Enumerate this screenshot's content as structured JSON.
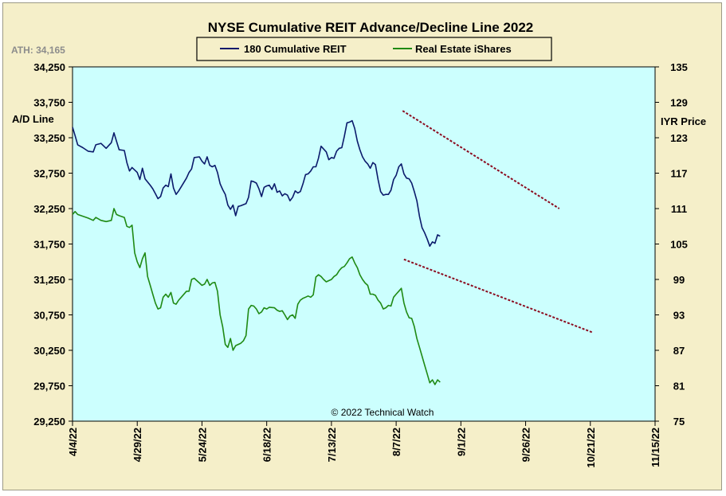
{
  "chart_data": {
    "type": "line",
    "title": "NYSE Cumulative  REIT Advance/Decline  Line 2022",
    "ath_label": "ATH: 34,165",
    "left_axis_label": "A/D Line",
    "right_axis_label": "IYR Price",
    "copyright": "© 2022 Technical  Watch",
    "left_axis": {
      "ylim": [
        29250,
        34250
      ],
      "ticks": [
        "34,250",
        "33,750",
        "33,250",
        "32,750",
        "32,250",
        "31,750",
        "31,250",
        "30,750",
        "30,250",
        "29,750",
        "29,250"
      ]
    },
    "right_axis": {
      "ylim": [
        75,
        135
      ],
      "ticks": [
        "135",
        "129",
        "123",
        "117",
        "111",
        "105",
        "99",
        "93",
        "87",
        "81",
        "75"
      ]
    },
    "x_axis": {
      "ticks": [
        "4/4/22",
        "4/29/22",
        "5/24/22",
        "6/18/22",
        "7/13/22",
        "8/7/22",
        "9/1/22",
        "9/26/22",
        "10/21/22",
        "11/15/22"
      ],
      "tick_days": [
        0,
        25,
        50,
        75,
        100,
        125,
        150,
        175,
        200,
        225
      ],
      "range_days": [
        0,
        225
      ]
    },
    "grid": false,
    "legend_position": "top-center",
    "colors": {
      "background": "#ccfffe",
      "reit": "#0b1a6b",
      "iyr": "#1f8a14",
      "trendline": "#8b0a1e"
    },
    "series": [
      {
        "name": "180 Cumulative REIT",
        "axis": "left",
        "color": "#0b1a6b",
        "points": [
          [
            0,
            33400
          ],
          [
            1,
            33280
          ],
          [
            2,
            33150
          ],
          [
            4,
            33110
          ],
          [
            6,
            33060
          ],
          [
            8,
            33050
          ],
          [
            9,
            33150
          ],
          [
            11,
            33170
          ],
          [
            13,
            33100
          ],
          [
            15,
            33180
          ],
          [
            16,
            33320
          ],
          [
            17,
            33200
          ],
          [
            18,
            33080
          ],
          [
            20,
            33070
          ],
          [
            21,
            32900
          ],
          [
            22,
            32780
          ],
          [
            23,
            32830
          ],
          [
            25,
            32760
          ],
          [
            26,
            32660
          ],
          [
            27,
            32820
          ],
          [
            28,
            32670
          ],
          [
            30,
            32580
          ],
          [
            31,
            32530
          ],
          [
            32,
            32460
          ],
          [
            33,
            32390
          ],
          [
            34,
            32420
          ],
          [
            35,
            32540
          ],
          [
            36,
            32580
          ],
          [
            37,
            32560
          ],
          [
            38,
            32740
          ],
          [
            39,
            32540
          ],
          [
            40,
            32450
          ],
          [
            41,
            32500
          ],
          [
            42,
            32560
          ],
          [
            44,
            32680
          ],
          [
            45,
            32760
          ],
          [
            46,
            32810
          ],
          [
            47,
            32970
          ],
          [
            49,
            32980
          ],
          [
            50,
            32920
          ],
          [
            51,
            32880
          ],
          [
            52,
            32980
          ],
          [
            53,
            32860
          ],
          [
            54,
            32840
          ],
          [
            55,
            32860
          ],
          [
            56,
            32760
          ],
          [
            57,
            32600
          ],
          [
            58,
            32520
          ],
          [
            59,
            32450
          ],
          [
            60,
            32300
          ],
          [
            61,
            32240
          ],
          [
            62,
            32300
          ],
          [
            63,
            32150
          ],
          [
            64,
            32280
          ],
          [
            65,
            32290
          ],
          [
            67,
            32320
          ],
          [
            68,
            32410
          ],
          [
            69,
            32640
          ],
          [
            70,
            32630
          ],
          [
            71,
            32610
          ],
          [
            72,
            32530
          ],
          [
            73,
            32420
          ],
          [
            74,
            32550
          ],
          [
            75,
            32570
          ],
          [
            76,
            32580
          ],
          [
            77,
            32520
          ],
          [
            78,
            32600
          ],
          [
            79,
            32480
          ],
          [
            80,
            32500
          ],
          [
            81,
            32430
          ],
          [
            82,
            32460
          ],
          [
            83,
            32440
          ],
          [
            84,
            32360
          ],
          [
            85,
            32410
          ],
          [
            86,
            32500
          ],
          [
            87,
            32470
          ],
          [
            88,
            32490
          ],
          [
            89,
            32600
          ],
          [
            90,
            32730
          ],
          [
            91,
            32740
          ],
          [
            92,
            32780
          ],
          [
            93,
            32840
          ],
          [
            94,
            32840
          ],
          [
            95,
            32960
          ],
          [
            96,
            33130
          ],
          [
            97,
            33090
          ],
          [
            98,
            33050
          ],
          [
            99,
            32940
          ],
          [
            100,
            32970
          ],
          [
            101,
            32960
          ],
          [
            102,
            33060
          ],
          [
            103,
            33100
          ],
          [
            104,
            33110
          ],
          [
            105,
            33270
          ],
          [
            106,
            33460
          ],
          [
            107,
            33470
          ],
          [
            108,
            33490
          ],
          [
            109,
            33380
          ],
          [
            110,
            33200
          ],
          [
            111,
            33080
          ],
          [
            112,
            32980
          ],
          [
            113,
            32920
          ],
          [
            114,
            32880
          ],
          [
            115,
            32820
          ],
          [
            116,
            32900
          ],
          [
            117,
            32870
          ],
          [
            118,
            32660
          ],
          [
            119,
            32490
          ],
          [
            120,
            32440
          ],
          [
            121,
            32450
          ],
          [
            122,
            32450
          ],
          [
            123,
            32510
          ],
          [
            124,
            32660
          ],
          [
            125,
            32720
          ],
          [
            126,
            32840
          ],
          [
            127,
            32880
          ],
          [
            128,
            32740
          ],
          [
            129,
            32680
          ],
          [
            130,
            32670
          ],
          [
            131,
            32610
          ],
          [
            132,
            32490
          ],
          [
            133,
            32360
          ],
          [
            134,
            32140
          ],
          [
            135,
            31980
          ],
          [
            136,
            31910
          ],
          [
            137,
            31820
          ],
          [
            138,
            31720
          ],
          [
            139,
            31780
          ],
          [
            140,
            31760
          ],
          [
            141,
            31880
          ],
          [
            142,
            31860
          ]
        ]
      },
      {
        "name": "Real Estate iShares",
        "axis": "right",
        "color": "#1f8a14",
        "points": [
          [
            0,
            110
          ],
          [
            1,
            110.5
          ],
          [
            2,
            110
          ],
          [
            4,
            109.7
          ],
          [
            6,
            109.4
          ],
          [
            8,
            109
          ],
          [
            9,
            109.5
          ],
          [
            11,
            109
          ],
          [
            13,
            108.8
          ],
          [
            15,
            109
          ],
          [
            16,
            111
          ],
          [
            17,
            110
          ],
          [
            18,
            109.8
          ],
          [
            20,
            109.5
          ],
          [
            21,
            108
          ],
          [
            22,
            107.8
          ],
          [
            23,
            108.2
          ],
          [
            24,
            103.5
          ],
          [
            25,
            102
          ],
          [
            26,
            101
          ],
          [
            27,
            102.5
          ],
          [
            28,
            103.5
          ],
          [
            29,
            99.5
          ],
          [
            30,
            98
          ],
          [
            31,
            96.5
          ],
          [
            32,
            95
          ],
          [
            33,
            94
          ],
          [
            34,
            94.2
          ],
          [
            35,
            96
          ],
          [
            36,
            96.5
          ],
          [
            37,
            96
          ],
          [
            38,
            96.8
          ],
          [
            39,
            95
          ],
          [
            40,
            94.8
          ],
          [
            41,
            95.5
          ],
          [
            42,
            96
          ],
          [
            44,
            97
          ],
          [
            45,
            97
          ],
          [
            46,
            99
          ],
          [
            47,
            99.2
          ],
          [
            49,
            98.4
          ],
          [
            50,
            98
          ],
          [
            51,
            98.2
          ],
          [
            52,
            99
          ],
          [
            53,
            98
          ],
          [
            54,
            98.4
          ],
          [
            55,
            98.5
          ],
          [
            56,
            97
          ],
          [
            57,
            93
          ],
          [
            58,
            91
          ],
          [
            59,
            88
          ],
          [
            60,
            87.5
          ],
          [
            61,
            89
          ],
          [
            62,
            87
          ],
          [
            63,
            87.8
          ],
          [
            65,
            88.2
          ],
          [
            66,
            88.6
          ],
          [
            67,
            89.5
          ],
          [
            68,
            94
          ],
          [
            69,
            94.6
          ],
          [
            70,
            94.5
          ],
          [
            71,
            94
          ],
          [
            72,
            93.2
          ],
          [
            73,
            93.5
          ],
          [
            74,
            94.2
          ],
          [
            75,
            94
          ],
          [
            76,
            94.3
          ],
          [
            78,
            94.2
          ],
          [
            79,
            93.8
          ],
          [
            80,
            93.6
          ],
          [
            81,
            93.7
          ],
          [
            82,
            93
          ],
          [
            83,
            92.2
          ],
          [
            84,
            92.8
          ],
          [
            85,
            93
          ],
          [
            86,
            92.4
          ],
          [
            87,
            94.8
          ],
          [
            88,
            95.5
          ],
          [
            89,
            95.8
          ],
          [
            90,
            96
          ],
          [
            91,
            96.2
          ],
          [
            92,
            96
          ],
          [
            93,
            96.4
          ],
          [
            94,
            99.4
          ],
          [
            95,
            99.8
          ],
          [
            96,
            99.5
          ],
          [
            97,
            99
          ],
          [
            98,
            98.6
          ],
          [
            99,
            98.8
          ],
          [
            100,
            99
          ],
          [
            101,
            99.5
          ],
          [
            102,
            99.8
          ],
          [
            103,
            100.5
          ],
          [
            104,
            101
          ],
          [
            105,
            101.2
          ],
          [
            106,
            101.8
          ],
          [
            107,
            102.5
          ],
          [
            108,
            102.8
          ],
          [
            109,
            101.8
          ],
          [
            110,
            101
          ],
          [
            111,
            99.8
          ],
          [
            112,
            99
          ],
          [
            113,
            98.4
          ],
          [
            114,
            98
          ],
          [
            115,
            96.5
          ],
          [
            116,
            96.5
          ],
          [
            117,
            96.3
          ],
          [
            118,
            95.5
          ],
          [
            119,
            95
          ],
          [
            120,
            94
          ],
          [
            121,
            94.2
          ],
          [
            122,
            94.6
          ],
          [
            123,
            94.5
          ],
          [
            124,
            96
          ],
          [
            125,
            96.5
          ],
          [
            126,
            97
          ],
          [
            127,
            97.5
          ],
          [
            128,
            95
          ],
          [
            129,
            93.5
          ],
          [
            130,
            92.5
          ],
          [
            131,
            92.4
          ],
          [
            132,
            91
          ],
          [
            133,
            89
          ],
          [
            134,
            87.5
          ],
          [
            135,
            86
          ],
          [
            136,
            84.5
          ],
          [
            137,
            83
          ],
          [
            138,
            81.5
          ],
          [
            139,
            82
          ],
          [
            140,
            81.2
          ],
          [
            141,
            82
          ],
          [
            142,
            81.6
          ]
        ]
      }
    ],
    "trendlines": [
      {
        "axis": "left",
        "points": [
          [
            127.5,
            33630
          ],
          [
            188,
            32250
          ]
        ]
      },
      {
        "axis": "right",
        "points": [
          [
            128,
            102.4
          ],
          [
            201,
            90
          ]
        ]
      }
    ]
  }
}
